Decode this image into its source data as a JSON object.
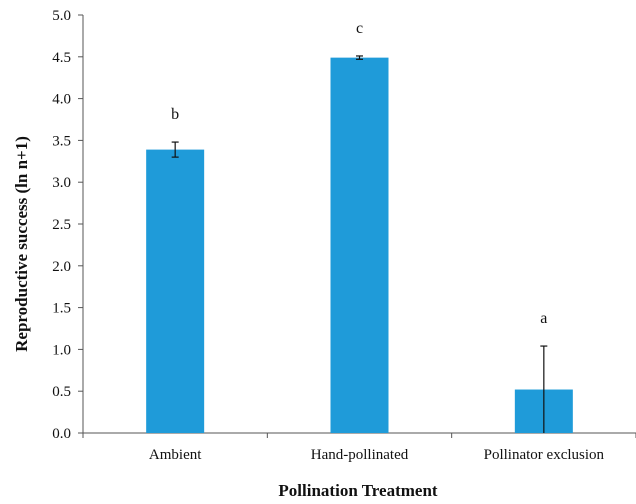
{
  "chart_data": {
    "type": "bar",
    "title": "",
    "xlabel": "Pollination Treatment",
    "ylabel": "Reproductive success (ln n+1)",
    "ylim": [
      0,
      5
    ],
    "yticks": [
      "0.0",
      "0.5",
      "1.0",
      "1.5",
      "2.0",
      "2.5",
      "3.0",
      "3.5",
      "4.0",
      "4.5",
      "5.0"
    ],
    "categories": [
      "Ambient",
      "Hand-pollinated",
      "Pollinator exclusion"
    ],
    "values": [
      3.39,
      4.49,
      0.52
    ],
    "error": [
      0.09,
      0.02,
      0.52
    ],
    "significance_letters": [
      "b",
      "c",
      "a"
    ],
    "bar_color": "#1f9bd9",
    "grid": false,
    "legend": "none"
  }
}
